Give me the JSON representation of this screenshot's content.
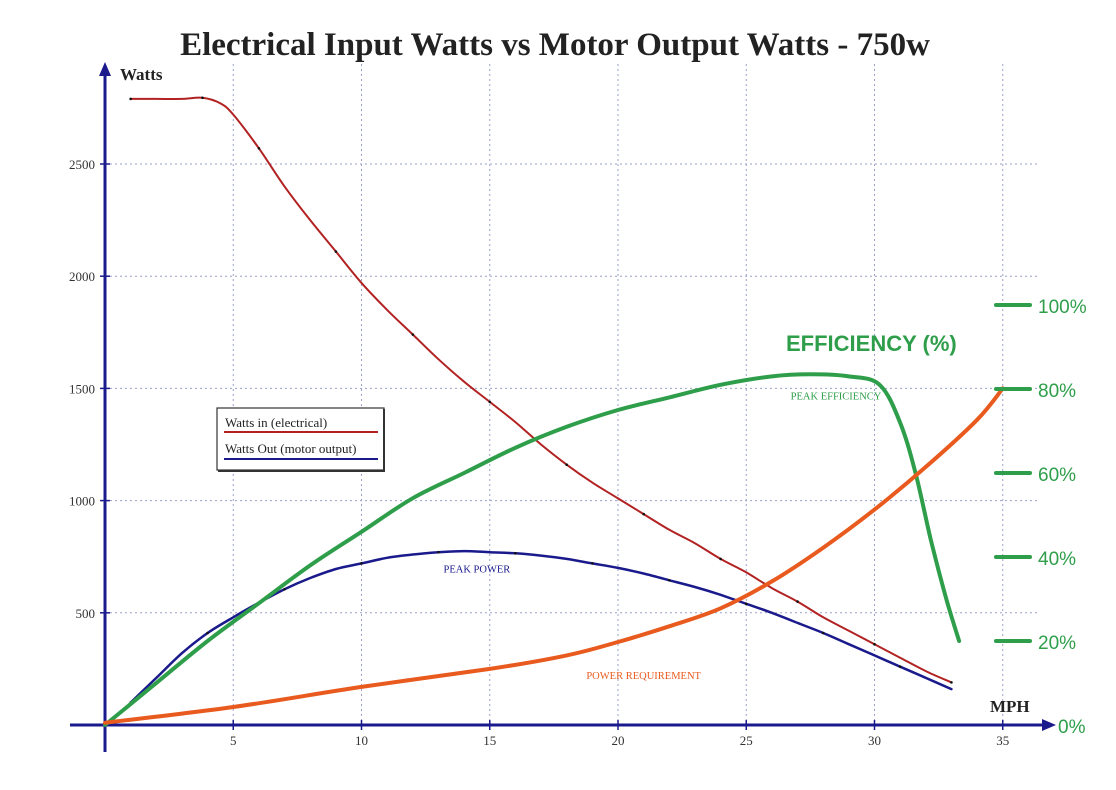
{
  "chart_data": {
    "type": "line",
    "title": "Electrical Input Watts vs Motor Output Watts - 750w",
    "xlabel": "MPH",
    "ylabel": "Watts",
    "xlim": [
      0,
      35.8
    ],
    "ylim": [
      0,
      2900
    ],
    "x_ticks": [
      "5",
      "10",
      "15",
      "20",
      "25",
      "30",
      "35"
    ],
    "y_ticks": [
      "500",
      "1000",
      "1500",
      "2000",
      "2500"
    ],
    "grid": true,
    "legend": {
      "placement": "center-left",
      "entries": [
        {
          "label": "Watts in (electrical)",
          "color": "#b22222"
        },
        {
          "label": "Watts Out (motor output)",
          "color": "#1a1a8c"
        }
      ]
    },
    "series": [
      {
        "name": "Watts in (electrical)",
        "color": "#b22222",
        "axis": "watts",
        "x": [
          1,
          2,
          3,
          3.8,
          4.5,
          5,
          6,
          7,
          8,
          9,
          10,
          11,
          12,
          13,
          14,
          15,
          16,
          17,
          18,
          19,
          20,
          21,
          22,
          23,
          24,
          25,
          26,
          27,
          28,
          29,
          30,
          31,
          32,
          33
        ],
        "y": [
          2790,
          2790,
          2790,
          2795,
          2770,
          2720,
          2570,
          2400,
          2250,
          2110,
          1970,
          1850,
          1740,
          1630,
          1530,
          1440,
          1350,
          1250,
          1160,
          1080,
          1010,
          940,
          870,
          810,
          740,
          680,
          610,
          550,
          480,
          420,
          360,
          300,
          240,
          190
        ]
      },
      {
        "name": "Watts Out (motor output)",
        "color": "#1a1a8c",
        "axis": "watts",
        "x": [
          1,
          2,
          3,
          4,
          5,
          6,
          7,
          8,
          9,
          10,
          11,
          12,
          13,
          14,
          15,
          16,
          17,
          18,
          19,
          20,
          21,
          22,
          23,
          24,
          25,
          26,
          27,
          28,
          29,
          30,
          31,
          32,
          33
        ],
        "y": [
          100,
          210,
          320,
          410,
          480,
          545,
          605,
          655,
          695,
          720,
          745,
          760,
          770,
          775,
          770,
          765,
          755,
          740,
          720,
          700,
          675,
          645,
          615,
          580,
          540,
          500,
          455,
          410,
          360,
          310,
          260,
          210,
          160
        ]
      },
      {
        "name": "EFFICIENCY (%)",
        "color": "#2e9e4a",
        "axis": "efficiency",
        "x": [
          0,
          2,
          4,
          6,
          8,
          10,
          12,
          14,
          16,
          18,
          20,
          22,
          24,
          26,
          27.5,
          29,
          30.2,
          31,
          31.6,
          32.2,
          32.8,
          33.3
        ],
        "y": [
          0,
          10,
          20,
          29,
          38,
          46,
          54,
          60,
          66,
          71,
          75,
          78,
          81,
          83,
          83.5,
          83,
          81,
          72,
          60,
          44,
          30,
          20
        ]
      },
      {
        "name": "POWER REQUIREMENT",
        "color": "#e85a1e",
        "axis": "watts",
        "x": [
          0,
          5,
          10,
          15,
          18,
          20,
          22,
          24,
          26,
          28,
          30,
          32,
          34,
          35
        ],
        "y": [
          10,
          80,
          170,
          250,
          310,
          370,
          440,
          520,
          640,
          790,
          960,
          1150,
          1360,
          1500
        ]
      }
    ],
    "efficiency_axis": {
      "label": "EFFICIENCY (%)",
      "range": [
        0,
        100
      ],
      "ticks": [
        "0%",
        "20%",
        "40%",
        "60%",
        "80%",
        "100%"
      ],
      "tick_values": [
        0,
        20,
        40,
        60,
        80,
        100
      ]
    },
    "annotations": [
      {
        "text": "PEAK POWER",
        "color": "#1a1a8c",
        "x": 14.5,
        "y": 680
      },
      {
        "text": "PEAK EFFICIENCY",
        "color": "#2e9e4a",
        "x": 28.5,
        "y": 1450
      },
      {
        "text": "POWER REQUIREMENT",
        "color": "#e85a1e",
        "x": 21,
        "y": 205
      }
    ]
  }
}
